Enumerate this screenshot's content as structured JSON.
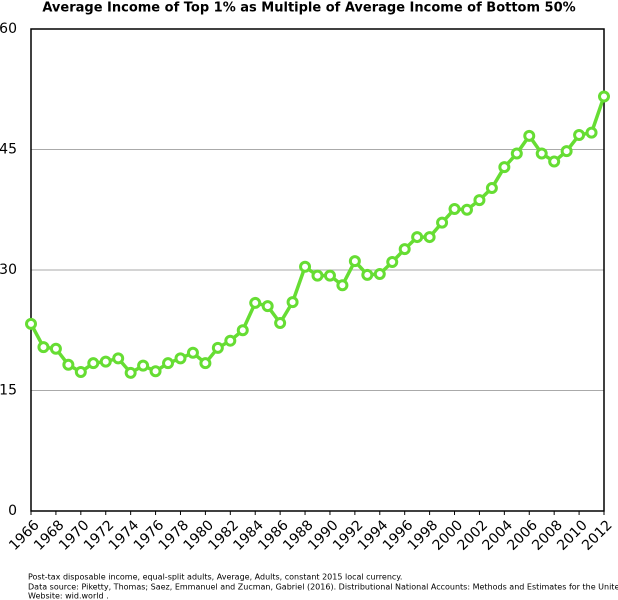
{
  "chart_data": {
    "type": "line",
    "title": "Average Income of Top 1% as Multiple of Average Income of Bottom 50%",
    "x": [
      1966,
      1967,
      1968,
      1969,
      1970,
      1971,
      1972,
      1973,
      1974,
      1975,
      1976,
      1977,
      1978,
      1979,
      1980,
      1981,
      1982,
      1983,
      1984,
      1985,
      1986,
      1987,
      1988,
      1989,
      1990,
      1991,
      1992,
      1993,
      1994,
      1995,
      1996,
      1997,
      1998,
      1999,
      2000,
      2001,
      2002,
      2003,
      2004,
      2005,
      2006,
      2007,
      2008,
      2009,
      2010,
      2011,
      2012
    ],
    "values": [
      23.3,
      20.4,
      20.2,
      18.2,
      17.3,
      18.4,
      18.6,
      19.0,
      17.2,
      18.1,
      17.4,
      18.4,
      19.0,
      19.7,
      18.4,
      20.3,
      21.2,
      22.5,
      25.9,
      25.5,
      23.4,
      26.0,
      30.4,
      29.3,
      29.3,
      28.1,
      31.1,
      29.4,
      29.5,
      31.0,
      32.6,
      34.1,
      34.1,
      35.9,
      37.6,
      37.5,
      38.7,
      40.2,
      42.8,
      44.5,
      46.7,
      44.5,
      43.5,
      44.8,
      46.8,
      47.1,
      51.6
    ],
    "color": "#66dd33",
    "xlim": [
      1966,
      2012
    ],
    "xticks": [
      1966,
      1968,
      1970,
      1972,
      1974,
      1976,
      1978,
      1980,
      1982,
      1984,
      1986,
      1988,
      1990,
      1992,
      1994,
      1996,
      1998,
      2000,
      2002,
      2004,
      2006,
      2008,
      2010,
      2012
    ],
    "ylim": [
      0,
      60
    ],
    "yticks": [
      0,
      15,
      30,
      45,
      60
    ],
    "grid": true,
    "footnotes": [
      "Post-tax disposable income, equal-split adults, Average, Adults, constant 2015 local currency.",
      "Data source: Piketty, Thomas; Saez, Emmanuel and Zucman, Gabriel (2016). Distributional National Accounts: Methods and Estimates for the United States.",
      "Website: wid.world ."
    ]
  }
}
